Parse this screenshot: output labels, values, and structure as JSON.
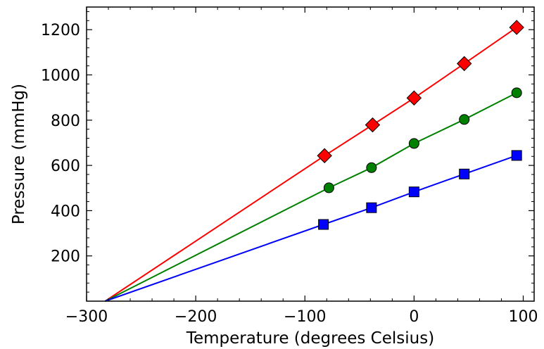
{
  "chart_data": {
    "type": "scatter",
    "title": "",
    "xlabel": "Temperature (degrees Celsius)",
    "ylabel": "Pressure (mmHg)",
    "xlim": [
      -300,
      110
    ],
    "ylim": [
      0,
      1300
    ],
    "xticks": [
      -300,
      -200,
      -100,
      0,
      100
    ],
    "xtick_labels": [
      "−300",
      "−200",
      "−100",
      "0",
      "100"
    ],
    "yticks": [
      200,
      400,
      600,
      800,
      1000,
      1200
    ],
    "ytick_labels": [
      "200",
      "400",
      "600",
      "800",
      "1000",
      "1200"
    ],
    "x_minor_step": 20,
    "y_minor_step": 40,
    "grid": false,
    "fit_intercept_x": -283,
    "series": [
      {
        "marker": "diamond",
        "color": "#ff0000",
        "points": [
          [
            -82,
            643
          ],
          [
            -38,
            779
          ],
          [
            0,
            898
          ],
          [
            46,
            1050
          ],
          [
            94,
            1210
          ]
        ]
      },
      {
        "marker": "circle",
        "color": "#008000",
        "points": [
          [
            -78,
            501
          ],
          [
            -39,
            590
          ],
          [
            0,
            697
          ],
          [
            46,
            803
          ],
          [
            94,
            921
          ]
        ]
      },
      {
        "marker": "square",
        "color": "#0000ff",
        "points": [
          [
            -83,
            339
          ],
          [
            -39,
            413
          ],
          [
            0,
            483
          ],
          [
            46,
            562
          ],
          [
            94,
            644
          ]
        ]
      }
    ]
  }
}
